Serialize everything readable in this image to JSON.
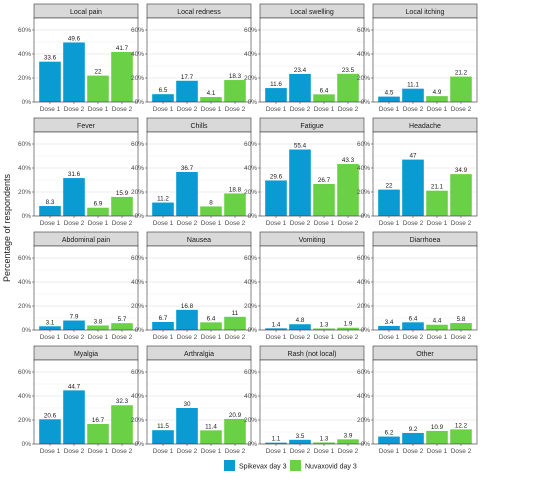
{
  "chart_data": {
    "type": "bar",
    "ylabel": "Percentage of respondents",
    "ylim": [
      0,
      70
    ],
    "yticks": [
      "0%",
      "20%",
      "40%",
      "60%"
    ],
    "ytick_values": [
      0,
      20,
      40,
      60
    ],
    "categories": [
      "Dose 1",
      "Dose 2",
      "Dose 1",
      "Dose 2"
    ],
    "bar_series": [
      "Spikevax day 3",
      "Spikevax day 3",
      "Nuvaxovid day 3",
      "Nuvaxovid day 3"
    ],
    "legend": [
      {
        "name": "Spikevax day 3",
        "color": "#0a9bd2"
      },
      {
        "name": "Nuvaxovid day 3",
        "color": "#6ad146"
      }
    ],
    "legend_position": "bottom",
    "grid": true,
    "panels": [
      {
        "title": "Local pain",
        "values": [
          33.6,
          49.6,
          22,
          41.7
        ]
      },
      {
        "title": "Local redness",
        "values": [
          6.5,
          17.7,
          4.1,
          18.3
        ]
      },
      {
        "title": "Local swelling",
        "values": [
          11.6,
          23.4,
          6.4,
          23.5
        ]
      },
      {
        "title": "Local itching",
        "values": [
          4.5,
          11.1,
          4.9,
          21.2
        ]
      },
      {
        "title": "Fever",
        "values": [
          8.3,
          31.6,
          6.9,
          15.9
        ]
      },
      {
        "title": "Chills",
        "values": [
          11.2,
          36.7,
          8,
          18.8
        ]
      },
      {
        "title": "Fatigue",
        "values": [
          29.6,
          55.4,
          26.7,
          43.3
        ]
      },
      {
        "title": "Headache",
        "values": [
          22,
          47,
          21.1,
          34.9
        ]
      },
      {
        "title": "Abdominal pain",
        "values": [
          3.1,
          7.9,
          3.8,
          5.7
        ]
      },
      {
        "title": "Nausea",
        "values": [
          6.7,
          16.8,
          6.4,
          11
        ]
      },
      {
        "title": "Vomiting",
        "values": [
          1.4,
          4.8,
          1.3,
          1.9
        ]
      },
      {
        "title": "Diarrhoea",
        "values": [
          3.4,
          6.4,
          4.4,
          5.8
        ]
      },
      {
        "title": "Myalgia",
        "values": [
          20.6,
          44.7,
          16.7,
          32.3
        ]
      },
      {
        "title": "Arthralgia",
        "values": [
          11.5,
          30,
          11.4,
          20.9
        ]
      },
      {
        "title": "Rash (not local)",
        "values": [
          1.1,
          3.5,
          1.3,
          3.9
        ]
      },
      {
        "title": "Other",
        "values": [
          6.2,
          9.2,
          10.9,
          12.2
        ]
      }
    ]
  }
}
